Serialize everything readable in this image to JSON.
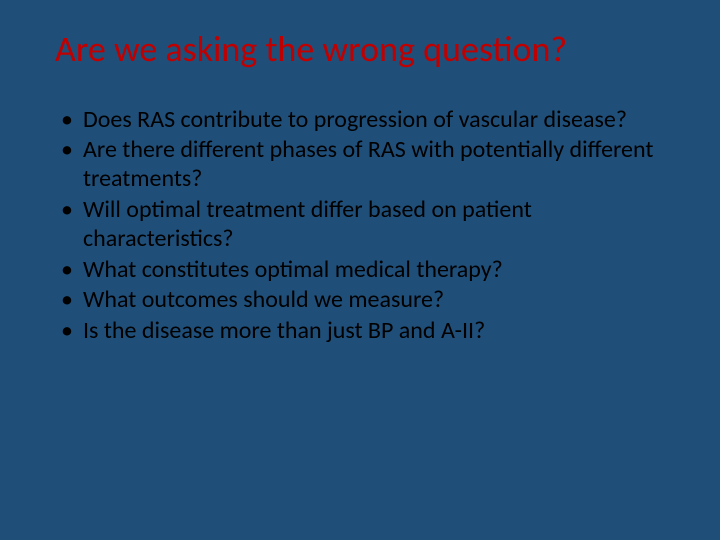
{
  "slide": {
    "background_color": "#1f4e79",
    "title": {
      "text": "Are we asking the wrong question?",
      "color": "#c00000",
      "fontsize": 36,
      "fontweight": 400
    },
    "bullets": {
      "color": "#000000",
      "fontsize": 24,
      "items": [
        "Does RAS contribute to progression of vascular disease?",
        "Are there different phases of RAS with potentially different treatments?",
        "Will optimal treatment differ based on patient characteristics?",
        "What constitutes optimal medical therapy?",
        "What outcomes should we measure?",
        "Is the disease more than just BP and A-II?"
      ]
    }
  }
}
